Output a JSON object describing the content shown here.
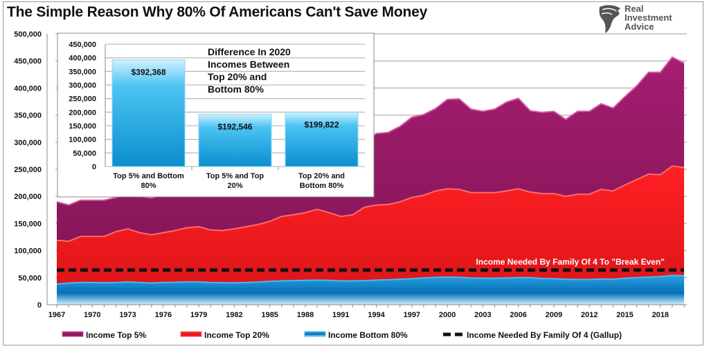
{
  "title": "The Simple Reason Why 80% Of Americans Can't Save Money",
  "logo": {
    "name": "Real Investment Advice",
    "lines": [
      "Real",
      "Investment",
      "Advice"
    ],
    "icon": "eagle-head-icon"
  },
  "chart_data": [
    {
      "type": "area",
      "title": "The Simple Reason Why 80% Of Americans Can't Save Money",
      "xlabel": "",
      "ylabel": "",
      "ylim": [
        0,
        500000
      ],
      "xlim": [
        1967,
        2020
      ],
      "yticks": [
        "0",
        "50,000",
        "100,000",
        "150,000",
        "200,000",
        "250,000",
        "300,000",
        "350,000",
        "400,000",
        "450,000",
        "500,000"
      ],
      "xticks": [
        "1967",
        "1970",
        "1973",
        "1976",
        "1979",
        "1982",
        "1985",
        "1988",
        "1991",
        "1994",
        "1997",
        "2000",
        "2003",
        "2006",
        "2009",
        "2012",
        "2015",
        "2018"
      ],
      "grid": true,
      "legend_placement": "bottom",
      "x": [
        1967,
        1968,
        1969,
        1970,
        1971,
        1972,
        1973,
        1974,
        1975,
        1976,
        1977,
        1978,
        1979,
        1980,
        1981,
        1982,
        1983,
        1984,
        1985,
        1986,
        1987,
        1988,
        1989,
        1990,
        1991,
        1992,
        1993,
        1994,
        1995,
        1996,
        1997,
        1998,
        1999,
        2000,
        2001,
        2002,
        2003,
        2004,
        2005,
        2006,
        2007,
        2008,
        2009,
        2010,
        2011,
        2012,
        2013,
        2014,
        2015,
        2016,
        2017,
        2018,
        2019,
        2020
      ],
      "series": [
        {
          "name": "Income Top 5%",
          "color": "#9b1b68",
          "values": [
            190000,
            184000,
            193000,
            193000,
            193000,
            198000,
            205000,
            200000,
            197000,
            203000,
            208000,
            213000,
            218000,
            215000,
            214000,
            220000,
            228000,
            236000,
            244000,
            255000,
            262000,
            266000,
            275000,
            272000,
            268000,
            275000,
            300000,
            316000,
            318000,
            329000,
            346000,
            351000,
            362000,
            379000,
            380000,
            361000,
            357000,
            361000,
            374000,
            381000,
            358000,
            355000,
            357000,
            342000,
            357000,
            357000,
            371000,
            363000,
            384000,
            404000,
            429000,
            429000,
            457000,
            445900
          ]
        },
        {
          "name": "Income Top 20%",
          "color": "#f0191e",
          "values": [
            119000,
            117000,
            126000,
            126000,
            126000,
            135000,
            140000,
            133000,
            129000,
            133000,
            137000,
            142000,
            144000,
            138000,
            137000,
            140000,
            144000,
            148000,
            154000,
            163000,
            166000,
            170000,
            176000,
            170000,
            163000,
            166000,
            180000,
            184000,
            185000,
            190000,
            198000,
            202000,
            210000,
            214000,
            213000,
            207000,
            207000,
            207000,
            210000,
            214000,
            208000,
            205000,
            205000,
            200000,
            204000,
            204000,
            213000,
            210000,
            221000,
            231000,
            241000,
            240000,
            256000,
            253300
          ]
        },
        {
          "name": "Income Bottom 80%",
          "color": "#0a7fc4",
          "values": [
            38000,
            40000,
            41000,
            41000,
            40500,
            41000,
            42000,
            41000,
            40000,
            41000,
            41500,
            42000,
            42000,
            41000,
            40500,
            40500,
            41000,
            42000,
            43000,
            44000,
            44500,
            45000,
            45500,
            45000,
            44000,
            44000,
            44500,
            45500,
            46000,
            47000,
            48000,
            49500,
            50500,
            51000,
            50500,
            49500,
            49000,
            49000,
            49500,
            50000,
            50000,
            48500,
            48000,
            47000,
            46500,
            46500,
            47500,
            47000,
            49000,
            50000,
            51000,
            52000,
            54000,
            53500
          ]
        },
        {
          "name": "Income Needed By Family Of 4 (Gallup)",
          "color": "#111111",
          "style": "dashed",
          "value": 64000,
          "annotation": "Income Needed By Family Of 4 To \"Break Even\""
        }
      ]
    },
    {
      "type": "bar",
      "title": "Difference In 2020 Incomes Between Top 20% and Bottom 80%",
      "title_lines": [
        "Difference In 2020",
        "Incomes Between",
        "Top 20% and",
        "Bottom 80%"
      ],
      "ylim": [
        0,
        450000
      ],
      "yticks": [
        "0",
        "50,000",
        "100,000",
        "150,000",
        "200,000",
        "250,000",
        "300,000",
        "350,000",
        "400,000",
        "450,000"
      ],
      "grid": true,
      "categories": [
        [
          "Top 5% and Bottom",
          "80%"
        ],
        [
          "Top 5% and Top",
          "20%"
        ],
        [
          "Top 20% and",
          "Bottom 80%"
        ]
      ],
      "values": [
        392368,
        192546,
        199822
      ],
      "labels": [
        "$392,368",
        "$192,546",
        "$199,822"
      ],
      "color": "#1aa3e0"
    }
  ]
}
